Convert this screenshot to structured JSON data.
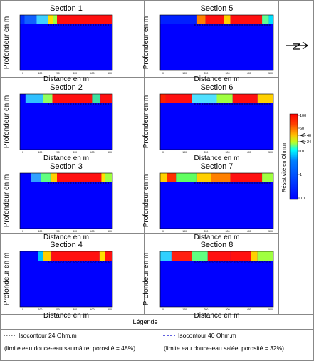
{
  "panel": {
    "ylabel": "Profondeur en m",
    "xlabel": "Distance en m",
    "xticks": [
      "0",
      "100",
      "200",
      "300",
      "400",
      "500"
    ]
  },
  "sections": [
    {
      "title": "Section 1"
    },
    {
      "title": "Section 5"
    },
    {
      "title": "Section 2"
    },
    {
      "title": "Section 6"
    },
    {
      "title": "Section 3"
    },
    {
      "title": "Section 7"
    },
    {
      "title": "Section 4"
    },
    {
      "title": "Section 8"
    }
  ],
  "colorbar": {
    "label": "Résistivité en Ohm.m",
    "ticks": [
      "100",
      "60",
      "40",
      "24",
      "10",
      "1",
      "0.1"
    ],
    "markers": [
      "40",
      "24"
    ],
    "colors": [
      "#ff0000",
      "#ff8c00",
      "#ffff00",
      "#a0ff40",
      "#00ffff",
      "#0080ff",
      "#0000ff"
    ]
  },
  "north_arrow": "N",
  "legend": {
    "title": "Légende",
    "items": [
      {
        "label": "Isocontour 24 Ohm.m",
        "note": "(limite eau douce-eau saumâtre: porosité = 48%)",
        "color": "#000000"
      },
      {
        "label": "Isocontour 40 Ohm.m",
        "note": "(limite eau douce-eau salée: porosité = 32%)",
        "color": "#0000cc"
      }
    ]
  }
}
